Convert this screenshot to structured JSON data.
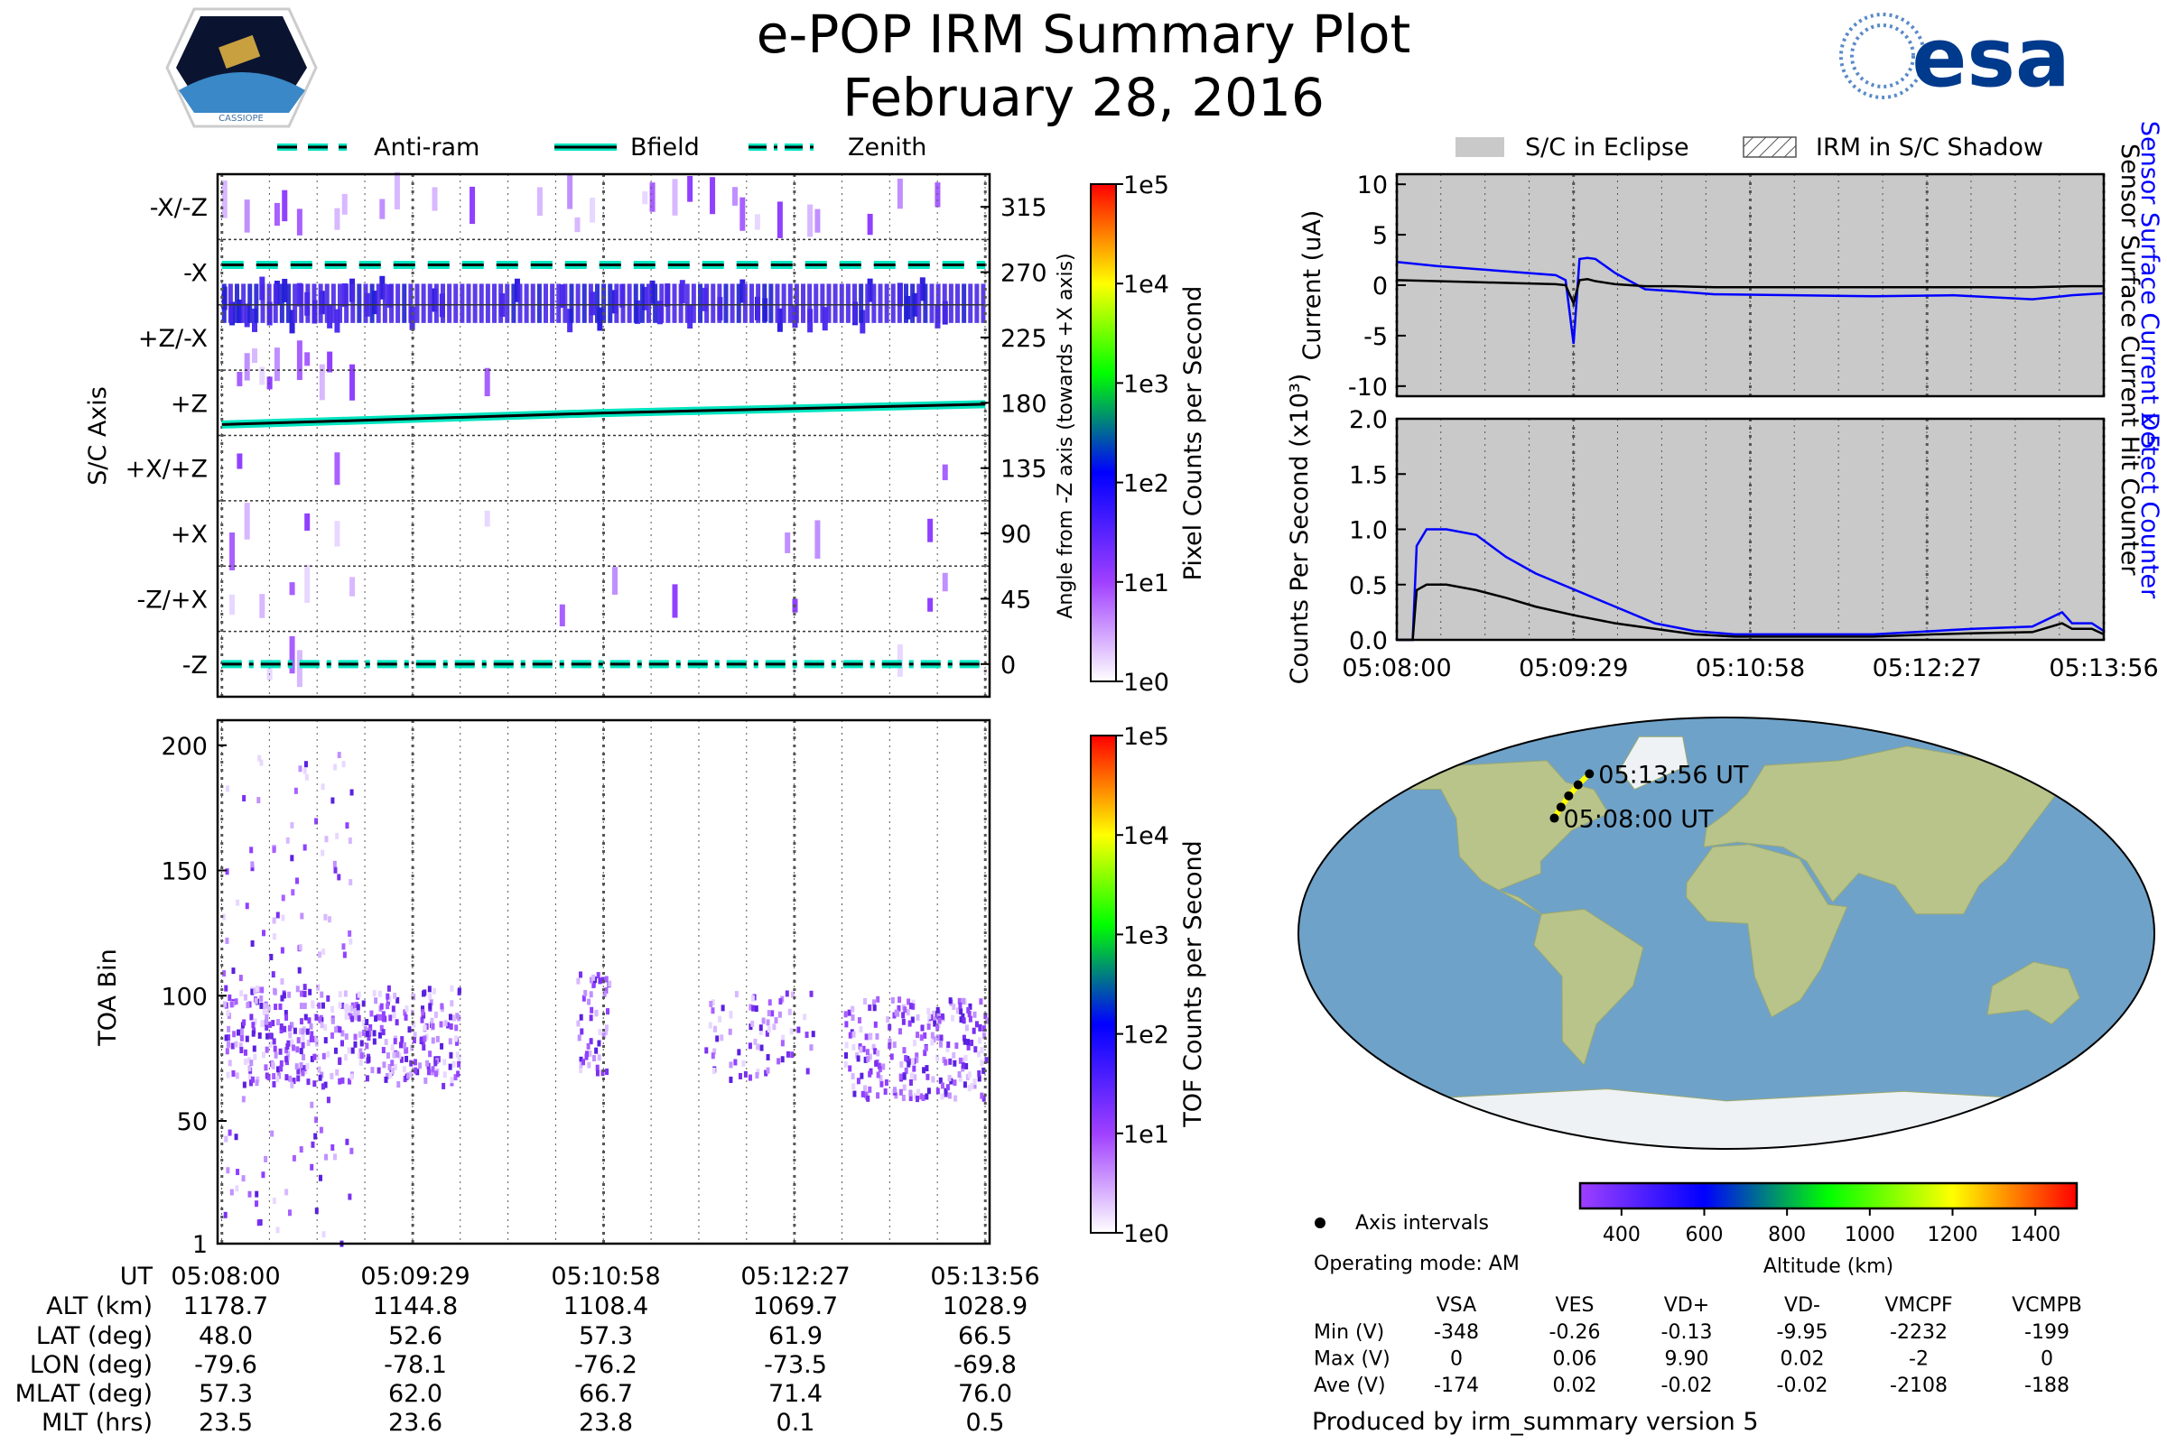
{
  "header": {
    "title": "e-POP IRM Summary Plot",
    "date": "February 28, 2016",
    "left_logo_text": "CASSIOPE",
    "right_logo_text": "esa"
  },
  "legend_left": [
    "Anti-ram",
    "Bfield",
    "Zenith"
  ],
  "legend_right": [
    "S/C in Eclipse",
    "IRM in S/C Shadow"
  ],
  "colors": {
    "anti_ram": "#000000",
    "bfield_outline": "#00e5c0",
    "eclipse": "#c8c9c8",
    "blue": "#0000ff"
  },
  "chart_data": [
    {
      "type": "heatmap",
      "name": "sc_axis_panel",
      "ylabel": "S/C Axis",
      "ylabel_right": "Angle from -Z axis (towards +X axis)",
      "y_categories": [
        "-X/-Z",
        "-X",
        "+Z/-X",
        "+Z",
        "+X/+Z",
        "+X",
        "-Z/+X",
        "-Z"
      ],
      "y_right_ticks": [
        "315",
        "270",
        "225",
        "180",
        "135",
        "90",
        "45",
        "0"
      ],
      "ylim": [
        -22.5,
        337.5
      ],
      "xlim_seconds": [
        -2,
        358
      ],
      "lines": [
        {
          "name": "Anti-ram",
          "style": "dashed",
          "x": [
            0,
            356
          ],
          "y": [
            275,
            275
          ]
        },
        {
          "name": "Bfield",
          "style": "solid",
          "x": [
            0,
            89,
            178,
            267,
            356
          ],
          "y": [
            165,
            169,
            173,
            176,
            179
          ]
        },
        {
          "name": "Zenith",
          "style": "dash-dot",
          "x": [
            0,
            356
          ],
          "y": [
            0,
            0
          ]
        }
      ],
      "colorbar": {
        "label": "Pixel Counts per Second",
        "ticks": [
          "1e5",
          "1e4",
          "1e3",
          "1e2",
          "1e1",
          "1e0"
        ]
      }
    },
    {
      "type": "heatmap",
      "name": "toa_panel",
      "ylabel": "TOA Bin",
      "yticks": [
        "200",
        "150",
        "100",
        "50",
        "1"
      ],
      "ylim": [
        1,
        210
      ],
      "colorbar": {
        "label": "TOF Counts per Second",
        "ticks": [
          "1e5",
          "1e4",
          "1e3",
          "1e2",
          "1e1",
          "1e0"
        ]
      }
    },
    {
      "type": "line",
      "name": "current_panel",
      "ylabel": "Current (uA)",
      "ylim": [
        -11,
        11
      ],
      "yticks": [
        "10",
        "5",
        "0",
        "-5",
        "-10"
      ],
      "x_seconds": [
        0,
        20,
        40,
        60,
        80,
        85,
        89,
        92,
        96,
        100,
        110,
        125,
        140,
        160,
        200,
        240,
        280,
        300,
        320,
        340,
        356
      ],
      "series": [
        {
          "name": "Sensor Surface Current x 5",
          "color": "#0000ff",
          "values": [
            2.3,
            1.9,
            1.6,
            1.3,
            1.0,
            0.5,
            -5.8,
            2.6,
            2.7,
            2.6,
            1.2,
            -0.4,
            -0.6,
            -0.9,
            -1.0,
            -1.1,
            -1.0,
            -1.2,
            -1.4,
            -1.0,
            -0.8
          ]
        },
        {
          "name": "Sensor Surface Current",
          "color": "#000000",
          "values": [
            0.5,
            0.4,
            0.3,
            0.2,
            0.1,
            0.0,
            -1.8,
            0.5,
            0.6,
            0.4,
            0.1,
            -0.1,
            -0.1,
            -0.2,
            -0.2,
            -0.2,
            -0.2,
            -0.2,
            -0.2,
            -0.1,
            -0.1
          ]
        }
      ]
    },
    {
      "type": "line",
      "name": "counts_panel",
      "ylabel": "Counts Per Second (x10³)",
      "ylim": [
        0,
        2
      ],
      "yticks": [
        "2.0",
        "1.5",
        "1.0",
        "0.5",
        "0.0"
      ],
      "x_seconds": [
        0,
        8,
        10,
        15,
        25,
        40,
        55,
        70,
        90,
        110,
        130,
        150,
        170,
        200,
        240,
        270,
        290,
        320,
        335,
        340,
        350,
        356
      ],
      "series": [
        {
          "name": "Detect Counter",
          "color": "#0000ff",
          "values": [
            0,
            0,
            0.85,
            1.0,
            1.0,
            0.95,
            0.75,
            0.6,
            0.45,
            0.3,
            0.15,
            0.08,
            0.05,
            0.05,
            0.05,
            0.08,
            0.1,
            0.12,
            0.25,
            0.15,
            0.15,
            0.08
          ]
        },
        {
          "name": "Hit Counter",
          "color": "#000000",
          "values": [
            0,
            0,
            0.45,
            0.5,
            0.5,
            0.45,
            0.38,
            0.3,
            0.22,
            0.15,
            0.1,
            0.05,
            0.03,
            0.03,
            0.03,
            0.05,
            0.06,
            0.07,
            0.15,
            0.1,
            0.1,
            0.05
          ]
        }
      ]
    },
    {
      "type": "scatter",
      "name": "orbit_map",
      "points_lon": [
        -79.6,
        -78.1,
        -76.2,
        -73.5,
        -69.8
      ],
      "points_lat": [
        48.0,
        52.6,
        57.3,
        61.9,
        66.5
      ],
      "labels": [
        "05:08:00 UT",
        "05:13:56 UT"
      ],
      "colorbar": {
        "label": "Altitude (km)",
        "range": [
          300,
          1500
        ],
        "ticks": [
          "400",
          "600",
          "800",
          "1000",
          "1200",
          "1400"
        ]
      }
    }
  ],
  "x_ticks": [
    "05:08:00",
    "05:09:29",
    "05:10:58",
    "05:12:27",
    "05:13:56"
  ],
  "ephemeris": {
    "rows": [
      {
        "label": "UT",
        "values": [
          "05:08:00",
          "05:09:29",
          "05:10:58",
          "05:12:27",
          "05:13:56"
        ]
      },
      {
        "label": "ALT (km)",
        "values": [
          "1178.7",
          "1144.8",
          "1108.4",
          "1069.7",
          "1028.9"
        ]
      },
      {
        "label": "LAT (deg)",
        "values": [
          "48.0",
          "52.6",
          "57.3",
          "61.9",
          "66.5"
        ]
      },
      {
        "label": "LON (deg)",
        "values": [
          "-79.6",
          "-78.1",
          "-76.2",
          "-73.5",
          "-69.8"
        ]
      },
      {
        "label": "MLAT (deg)",
        "values": [
          "57.3",
          "62.0",
          "66.7",
          "71.4",
          "76.0"
        ]
      },
      {
        "label": "MLT (hrs)",
        "values": [
          "23.5",
          "23.6",
          "23.8",
          "0.1",
          "0.5"
        ]
      }
    ]
  },
  "info": {
    "axis_intervals": "Axis intervals",
    "operating_mode": "Operating mode: AM",
    "produced_by": "Produced by irm_summary version 5"
  },
  "voltages": {
    "headers": [
      "VSA",
      "VES",
      "VD+",
      "VD-",
      "VMCPF",
      "VCMPB"
    ],
    "rows": [
      {
        "label": "Min (V)",
        "values": [
          "-348",
          "-0.26",
          "-0.13",
          "-9.95",
          "-2232",
          "-199"
        ]
      },
      {
        "label": "Max (V)",
        "values": [
          "0",
          "0.06",
          "9.90",
          "0.02",
          "-2",
          "0"
        ]
      },
      {
        "label": "Ave (V)",
        "values": [
          "-174",
          "0.02",
          "-0.02",
          "-0.02",
          "-2108",
          "-188"
        ]
      }
    ]
  }
}
